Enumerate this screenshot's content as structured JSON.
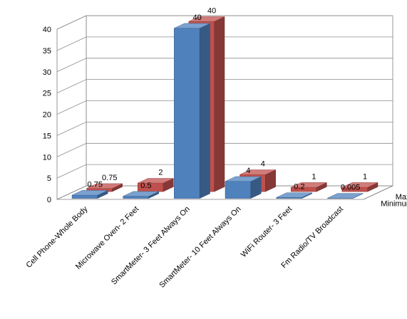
{
  "chart_data": {
    "type": "bar",
    "title": "",
    "xlabel": "",
    "ylabel": "",
    "ylim": [
      0,
      40
    ],
    "yticks": [
      "0",
      "5",
      "10",
      "15",
      "20",
      "25",
      "30",
      "35",
      "40"
    ],
    "grid": true,
    "categories": [
      "Cell Phone-Whole Body",
      "Microwave Oven- 2 Feet",
      "SmartMeter- 3 Feet Always On",
      "SmartMeter- 10 Feet Always On",
      "WiFi Router- 3 Feet",
      "Fm Radio/TV Broadcast"
    ],
    "series": [
      {
        "name": "Minimum",
        "values": [
          0.75,
          0.5,
          40,
          4,
          0.2,
          0.005
        ],
        "labels": [
          "0.75",
          "0.5",
          "40",
          "4",
          "0.2",
          "0.005"
        ],
        "color": "#4f81bd"
      },
      {
        "name": "Maximum",
        "values": [
          0.75,
          2,
          40,
          4,
          1,
          1
        ],
        "labels": [
          "0.75",
          "2",
          "40",
          "4",
          "1",
          "1"
        ],
        "color": "#c0504d"
      }
    ]
  }
}
